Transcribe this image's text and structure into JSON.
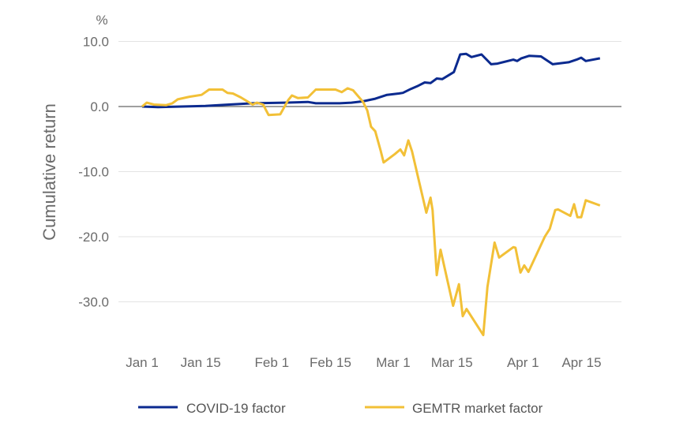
{
  "chart_data": {
    "type": "line",
    "title": "",
    "unit_label": "%",
    "xlabel": "",
    "ylabel": "Cumulative return",
    "x_unit": "days since Jan 1",
    "xlim": [
      -5,
      115
    ],
    "ylim": [
      -36,
      12
    ],
    "x_ticks": [
      {
        "label": "Jan 1",
        "value": 0
      },
      {
        "label": "Jan 15",
        "value": 14
      },
      {
        "label": "Feb 1",
        "value": 31
      },
      {
        "label": "Feb 15",
        "value": 45
      },
      {
        "label": "Mar 1",
        "value": 60
      },
      {
        "label": "Mar 15",
        "value": 74
      },
      {
        "label": "Apr 1",
        "value": 91
      },
      {
        "label": "Apr 15",
        "value": 105
      }
    ],
    "y_ticks": [
      {
        "label": "10.0",
        "value": 10
      },
      {
        "label": "0.0",
        "value": 0
      },
      {
        "label": "-10.0",
        "value": -10
      },
      {
        "label": "-20.0",
        "value": -20
      },
      {
        "label": "-30.0",
        "value": -30
      }
    ],
    "grid": true,
    "legend_position": "bottom",
    "series": [
      {
        "name": "COVID-19 factor",
        "color": "#0b2a8f",
        "x": [
          0,
          3.8,
          9.4,
          15.1,
          20.8,
          26.4,
          34,
          39.6,
          41.5,
          47.2,
          50,
          52.8,
          55.7,
          58.5,
          61.3,
          62.3,
          64.2,
          66,
          67.5,
          68.9,
          70.4,
          71.7,
          74.5,
          76,
          77.4,
          78.7,
          81.1,
          83.4,
          84.9,
          88.7,
          89.6,
          90.6,
          92.5,
          95.3,
          98.1,
          101.9,
          103.8,
          104.9,
          106,
          109.4
        ],
        "y": [
          0,
          -0.1,
          0,
          0.1,
          0.3,
          0.5,
          0.6,
          0.7,
          0.5,
          0.5,
          0.6,
          0.8,
          1.2,
          1.8,
          2.0,
          2.1,
          2.7,
          3.2,
          3.7,
          3.6,
          4.3,
          4.2,
          5.3,
          8.0,
          8.1,
          7.6,
          8.0,
          6.5,
          6.6,
          7.2,
          7.0,
          7.4,
          7.8,
          7.7,
          6.5,
          6.8,
          7.2,
          7.5,
          7.0,
          7.4
        ]
      },
      {
        "name": "GEMTR market factor",
        "color": "#f2c037",
        "x": [
          0,
          1.1,
          2.8,
          5.7,
          7.2,
          8.5,
          11.3,
          14.2,
          16,
          19.2,
          20.4,
          21.7,
          23.6,
          26.4,
          27.4,
          28.9,
          30.2,
          33,
          34.9,
          35.8,
          37.2,
          39.6,
          41.5,
          46.2,
          47.7,
          49.1,
          50.4,
          52.8,
          53.8,
          54.7,
          55.7,
          57,
          57.7,
          60.4,
          61.7,
          62.6,
          63.6,
          64.5,
          67.9,
          68.9,
          69.4,
          70.4,
          71.3,
          74.3,
          75.7,
          76.6,
          77.5,
          81.5,
          82.5,
          84.2,
          85.3,
          88.7,
          89.2,
          90.4,
          91.3,
          92.3,
          96.2,
          97.4,
          98.7,
          99.4,
          102.3,
          103.2,
          104,
          104.9,
          106,
          109.4
        ],
        "y": [
          0,
          0.6,
          0.3,
          0.2,
          0.5,
          1.1,
          1.5,
          1.8,
          2.6,
          2.6,
          2.1,
          2.0,
          1.4,
          0.3,
          0.6,
          0.3,
          -1.3,
          -1.2,
          1.0,
          1.7,
          1.3,
          1.4,
          2.6,
          2.6,
          2.2,
          2.8,
          2.5,
          0.7,
          -0.6,
          -3.1,
          -3.8,
          -6.8,
          -8.6,
          -7.3,
          -6.6,
          -7.5,
          -5.2,
          -6.9,
          -16.3,
          -14.0,
          -15.9,
          -25.9,
          -22.0,
          -30.6,
          -27.3,
          -32.2,
          -31.1,
          -35.1,
          -27.7,
          -20.9,
          -23.2,
          -21.6,
          -21.7,
          -25.5,
          -24.4,
          -25.4,
          -20.0,
          -18.8,
          -15.9,
          -15.8,
          -16.8,
          -15.0,
          -17.0,
          -17.0,
          -14.4,
          -15.2
        ]
      }
    ]
  }
}
